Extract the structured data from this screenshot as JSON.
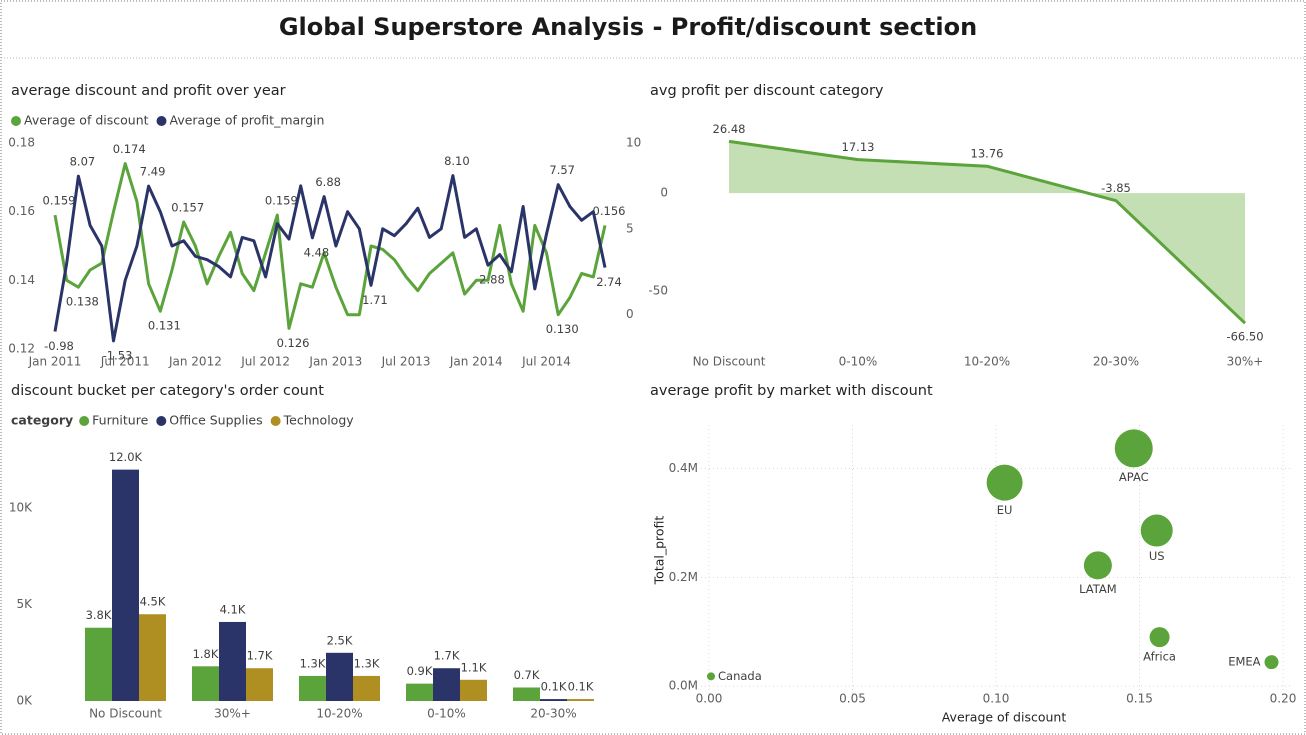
{
  "header": {
    "title": "Global Superstore Analysis - Profit/discount section"
  },
  "chart_data": [
    {
      "type": "line",
      "title": "average discount and profit over year",
      "categories": [
        "Jan 2011",
        null,
        null,
        null,
        null,
        null,
        "Jul 2011",
        null,
        null,
        null,
        null,
        null,
        "Jan 2012",
        null,
        null,
        null,
        null,
        null,
        "Jul 2012",
        null,
        null,
        null,
        null,
        null,
        "Jan 2013",
        null,
        null,
        null,
        null,
        null,
        "Jul 2013",
        null,
        null,
        null,
        null,
        null,
        "Jan 2014",
        null,
        null,
        null,
        null,
        null,
        "Jul 2014",
        null,
        null,
        null,
        null,
        null
      ],
      "ylim": [
        0.12,
        0.18
      ],
      "yticks": [
        0.12,
        0.14,
        0.16,
        0.18
      ],
      "y2lim": [
        -2,
        10
      ],
      "y2ticks": [
        0,
        5,
        10
      ],
      "series": [
        {
          "name": "Average of discount",
          "color": "#5ba33b",
          "values": [
            0.159,
            0.14,
            0.138,
            0.143,
            0.145,
            0.16,
            0.174,
            0.163,
            0.139,
            0.131,
            0.143,
            0.157,
            0.15,
            0.139,
            0.147,
            0.154,
            0.142,
            0.137,
            0.148,
            0.159,
            0.126,
            0.139,
            0.138,
            0.148,
            0.138,
            0.13,
            0.13,
            0.15,
            0.149,
            0.146,
            0.141,
            0.137,
            0.142,
            0.145,
            0.148,
            0.136,
            0.14,
            0.14,
            0.156,
            0.139,
            0.131,
            0.156,
            0.148,
            0.13,
            0.135,
            0.142,
            0.141,
            0.156
          ],
          "value_labels": [
            "0.159",
            null,
            "0.138",
            null,
            null,
            null,
            "0.174",
            null,
            null,
            "0.131",
            null,
            "0.157",
            null,
            null,
            null,
            null,
            null,
            null,
            null,
            "0.159",
            "0.126",
            null,
            null,
            null,
            null,
            null,
            null,
            null,
            null,
            null,
            null,
            null,
            null,
            null,
            null,
            null,
            null,
            null,
            null,
            null,
            null,
            null,
            null,
            "0.130",
            null,
            null,
            null,
            "0.156"
          ]
        },
        {
          "name": "Average of profit_margin",
          "color": "#2a3468",
          "axis": "y2",
          "values": [
            -0.98,
            3.0,
            8.07,
            5.2,
            4.0,
            -1.53,
            2.0,
            4.0,
            7.49,
            6.0,
            4.0,
            4.3,
            3.4,
            3.2,
            2.8,
            2.2,
            4.5,
            4.3,
            2.2,
            5.3,
            4.4,
            7.5,
            4.48,
            6.88,
            4.0,
            6.0,
            5.0,
            1.71,
            5.0,
            4.6,
            5.3,
            6.2,
            4.5,
            5.0,
            8.1,
            4.5,
            5.0,
            2.88,
            3.5,
            2.5,
            6.3,
            1.5,
            4.7,
            7.57,
            6.3,
            5.5,
            6.0,
            2.74
          ],
          "value_labels": [
            "-0.98",
            null,
            "8.07",
            null,
            null,
            "-1.53",
            null,
            null,
            "7.49",
            null,
            null,
            null,
            null,
            null,
            null,
            null,
            null,
            null,
            null,
            null,
            null,
            null,
            "4.48",
            "6.88",
            null,
            null,
            null,
            "1.71",
            null,
            null,
            null,
            null,
            null,
            null,
            "8.10",
            null,
            null,
            "2.88",
            null,
            null,
            null,
            null,
            null,
            "7.57",
            null,
            null,
            null,
            "2.74"
          ]
        }
      ]
    },
    {
      "type": "area",
      "title": "avg profit per discount category",
      "color": "#5ba33b",
      "fill": "#c3dfb3",
      "categories": [
        "No Discount",
        "0-10%",
        "10-20%",
        "20-30%",
        "30%+"
      ],
      "values": [
        26.48,
        17.13,
        13.76,
        -3.85,
        -66.5
      ],
      "value_labels": [
        "26.48",
        "17.13",
        "13.76",
        "-3.85",
        "-66.50"
      ],
      "ylim": [
        -72,
        42
      ],
      "yticks": [
        -50,
        0
      ]
    },
    {
      "type": "bar",
      "title": "discount bucket per category's order count",
      "legend_title": "category",
      "categories": [
        "No Discount",
        "30%+",
        "10-20%",
        "0-10%",
        "20-30%"
      ],
      "ylim": [
        0,
        12500
      ],
      "yticks": [
        {
          "value": 0,
          "label": "0K"
        },
        {
          "value": 5000,
          "label": "5K"
        },
        {
          "value": 10000,
          "label": "10K"
        }
      ],
      "series": [
        {
          "name": "Furniture",
          "color": "#5ba33b",
          "values": [
            3800,
            1800,
            1300,
            900,
            700
          ],
          "value_labels": [
            "3.8K",
            "1.8K",
            "1.3K",
            "0.9K",
            "0.7K"
          ]
        },
        {
          "name": "Office Supplies",
          "color": "#2a3468",
          "values": [
            12000,
            4100,
            2500,
            1700,
            100
          ],
          "value_labels": [
            "12.0K",
            "4.1K",
            "2.5K",
            "1.7K",
            "0.1K"
          ]
        },
        {
          "name": "Technology",
          "color": "#b08f22",
          "values": [
            4500,
            1700,
            1300,
            1100,
            100
          ],
          "value_labels": [
            "4.5K",
            "1.7K",
            "1.3K",
            "1.1K",
            "0.1K"
          ]
        }
      ]
    },
    {
      "type": "scatter",
      "title": "average profit by market with discount",
      "color": "#5ba33b",
      "grid": true,
      "x_label": "Average of discount",
      "y_label": "Total_profit",
      "labels": [
        "APAC",
        "EU",
        "US",
        "LATAM",
        "Africa",
        "EMEA",
        "Canada"
      ],
      "x": [
        0.148,
        0.103,
        0.156,
        0.1355,
        0.157,
        0.196,
        0.0007
      ],
      "values": [
        437000,
        374000,
        286000,
        222000,
        90000,
        44000,
        18000
      ],
      "sizes": [
        361,
        324,
        256,
        196,
        100,
        49,
        16
      ],
      "xlim": [
        0,
        0.2
      ],
      "xticks": [
        {
          "value": 0,
          "label": "0.00"
        },
        0.05,
        {
          "value": 0.1,
          "label": "0.10"
        },
        0.15,
        {
          "value": 0.2,
          "label": "0.20"
        }
      ],
      "ylim": [
        -20000,
        480000
      ],
      "yticks": [
        {
          "value": 0,
          "label": "0.0M"
        },
        {
          "value": 200000,
          "label": "0.2M"
        },
        {
          "value": 400000,
          "label": "0.4M"
        }
      ]
    }
  ]
}
